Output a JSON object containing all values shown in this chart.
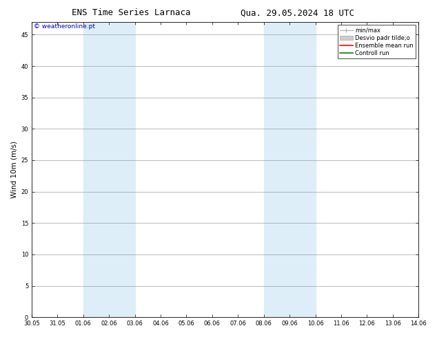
{
  "title_left": "ENS Time Series Larnaca",
  "title_right": "Qua. 29.05.2024 18 UTC",
  "ylabel": "Wind 10m (m/s)",
  "watermark": "© weatheronline.pt",
  "xtick_labels": [
    "30.05",
    "31.05",
    "01.06",
    "02.06",
    "03.06",
    "04.06",
    "05.06",
    "06.06",
    "07.06",
    "08.06",
    "09.06",
    "10.06",
    "11.06",
    "12.06",
    "13.06",
    "14.06"
  ],
  "shaded_bands": [
    {
      "xstart": 2,
      "xend": 4,
      "color": "#ddeef8"
    },
    {
      "xstart": 9,
      "xend": 11,
      "color": "#ddeef8"
    }
  ],
  "ylim": [
    0,
    47
  ],
  "yticks": [
    0,
    5,
    10,
    15,
    20,
    25,
    30,
    35,
    40,
    45
  ],
  "legend_entries": [
    {
      "label": "min/max"
    },
    {
      "label": "Desvio padr tilde;o"
    },
    {
      "label": "Ensemble mean run"
    },
    {
      "label": "Controll run"
    }
  ],
  "bg_color": "#ffffff",
  "grid_color": "#888888",
  "title_fontsize": 9,
  "tick_fontsize": 6,
  "label_fontsize": 7.5,
  "legend_fontsize": 6,
  "watermark_color": "#0000cc"
}
